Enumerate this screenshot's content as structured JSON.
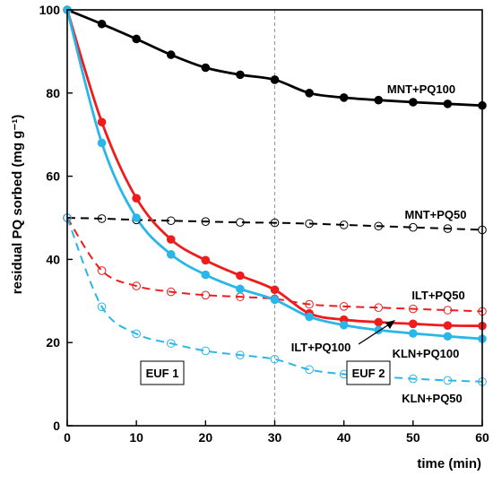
{
  "chart_data": {
    "type": "line",
    "xlabel": "time (min)",
    "ylabel": "residual PQ sorbed (mg g⁻¹)",
    "xlim": [
      0,
      60
    ],
    "ylim": [
      0,
      100
    ],
    "x_ticks": [
      0,
      10,
      20,
      30,
      40,
      50,
      60
    ],
    "y_ticks": [
      0,
      20,
      40,
      60,
      80,
      100
    ],
    "grid": false,
    "vertical_reference_line": {
      "x": 30,
      "style": "dashed",
      "color": "#999999"
    },
    "phase_labels": [
      {
        "text": "EUF 1"
      },
      {
        "text": "EUF 2"
      }
    ],
    "series": [
      {
        "name": "MNT+PQ100",
        "color": "#000000",
        "line": "solid",
        "marker": "filled-circle",
        "x": [
          0,
          5,
          10,
          15,
          20,
          25,
          30,
          35,
          40,
          45,
          50,
          55,
          60
        ],
        "y": [
          100,
          96.6,
          93.0,
          89.2,
          86.1,
          84.4,
          83.2,
          80.0,
          78.9,
          78.3,
          77.8,
          77.4,
          77.0
        ]
      },
      {
        "name": "MNT+PQ50",
        "color": "#000000",
        "line": "dashed",
        "marker": "open-circle",
        "x": [
          0,
          5,
          10,
          15,
          20,
          25,
          30,
          35,
          40,
          45,
          50,
          55,
          60
        ],
        "y": [
          50,
          49.8,
          49.5,
          49.3,
          49.1,
          48.9,
          48.8,
          48.6,
          48.3,
          48.0,
          47.7,
          47.4,
          47.1
        ]
      },
      {
        "name": "ILT+PQ100",
        "color": "#ee1c1c",
        "line": "solid",
        "marker": "filled-circle",
        "x": [
          0,
          5,
          10,
          15,
          20,
          25,
          30,
          35,
          40,
          45,
          50,
          55,
          60
        ],
        "y": [
          100,
          73.0,
          54.7,
          44.8,
          39.8,
          36.1,
          32.7,
          27.0,
          25.5,
          24.9,
          24.5,
          24.1,
          24.0
        ]
      },
      {
        "name": "ILT+PQ50",
        "color": "#ee1c1c",
        "line": "dashed",
        "marker": "open-circle",
        "x": [
          0,
          5,
          10,
          15,
          20,
          25,
          30,
          35,
          40,
          45,
          50,
          55,
          60
        ],
        "y": [
          50,
          37.3,
          33.6,
          32.2,
          31.4,
          31.0,
          30.5,
          29.2,
          28.7,
          28.4,
          28.1,
          27.8,
          27.5
        ]
      },
      {
        "name": "KLN+PQ100",
        "color": "#29b6e8",
        "line": "solid",
        "marker": "filled-circle",
        "x": [
          0,
          5,
          10,
          15,
          20,
          25,
          30,
          35,
          40,
          45,
          50,
          55,
          60
        ],
        "y": [
          100,
          68.0,
          50.0,
          41.2,
          36.3,
          32.9,
          30.3,
          26.2,
          24.2,
          23.0,
          22.2,
          21.5,
          20.9
        ]
      },
      {
        "name": "KLN+PQ50",
        "color": "#29b6e8",
        "line": "dashed",
        "marker": "open-circle",
        "x": [
          0,
          5,
          10,
          15,
          20,
          25,
          30,
          35,
          40,
          45,
          50,
          55,
          60
        ],
        "y": [
          50,
          28.6,
          22.1,
          19.8,
          18.0,
          17.0,
          16.0,
          13.5,
          12.4,
          11.8,
          11.3,
          10.9,
          10.6
        ]
      }
    ]
  }
}
